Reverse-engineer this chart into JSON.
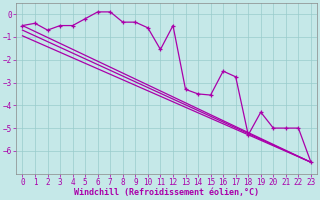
{
  "xlabel": "Windchill (Refroidissement éolien,°C)",
  "x": [
    0,
    1,
    2,
    3,
    4,
    5,
    6,
    7,
    8,
    9,
    10,
    11,
    12,
    13,
    14,
    15,
    16,
    17,
    18,
    19,
    20,
    21,
    22,
    23
  ],
  "line1": [
    -0.5,
    -0.4,
    -0.7,
    -0.5,
    -0.5,
    -0.2,
    0.1,
    0.1,
    -0.35,
    -0.35,
    -0.6,
    -1.55,
    -0.5,
    -3.3,
    -3.5,
    -3.55,
    -2.5,
    -2.75,
    -5.3,
    -4.3,
    -5.0,
    -5.0,
    -5.0,
    -6.5
  ],
  "diag_lines": [
    {
      "x0": 0,
      "y0": -0.5,
      "x1": 23,
      "y1": -6.5
    },
    {
      "x0": 0,
      "y0": -0.7,
      "x1": 23,
      "y1": -6.5
    },
    {
      "x0": 0,
      "y0": -0.95,
      "x1": 23,
      "y1": -6.5
    }
  ],
  "ylim": [
    -7.0,
    0.5
  ],
  "xlim": [
    -0.5,
    23.5
  ],
  "yticks": [
    0,
    -1,
    -2,
    -3,
    -4,
    -5,
    -6
  ],
  "xticks": [
    0,
    1,
    2,
    3,
    4,
    5,
    6,
    7,
    8,
    9,
    10,
    11,
    12,
    13,
    14,
    15,
    16,
    17,
    18,
    19,
    20,
    21,
    22,
    23
  ],
  "line_color": "#aa00aa",
  "bg_color": "#c5e8e8",
  "grid_color": "#99cccc",
  "tick_color": "#aa00aa",
  "xlabel_color": "#aa00aa",
  "tick_fontsize": 5.5,
  "xlabel_fontsize": 6.0,
  "line_width": 0.9,
  "marker_size": 3.0
}
